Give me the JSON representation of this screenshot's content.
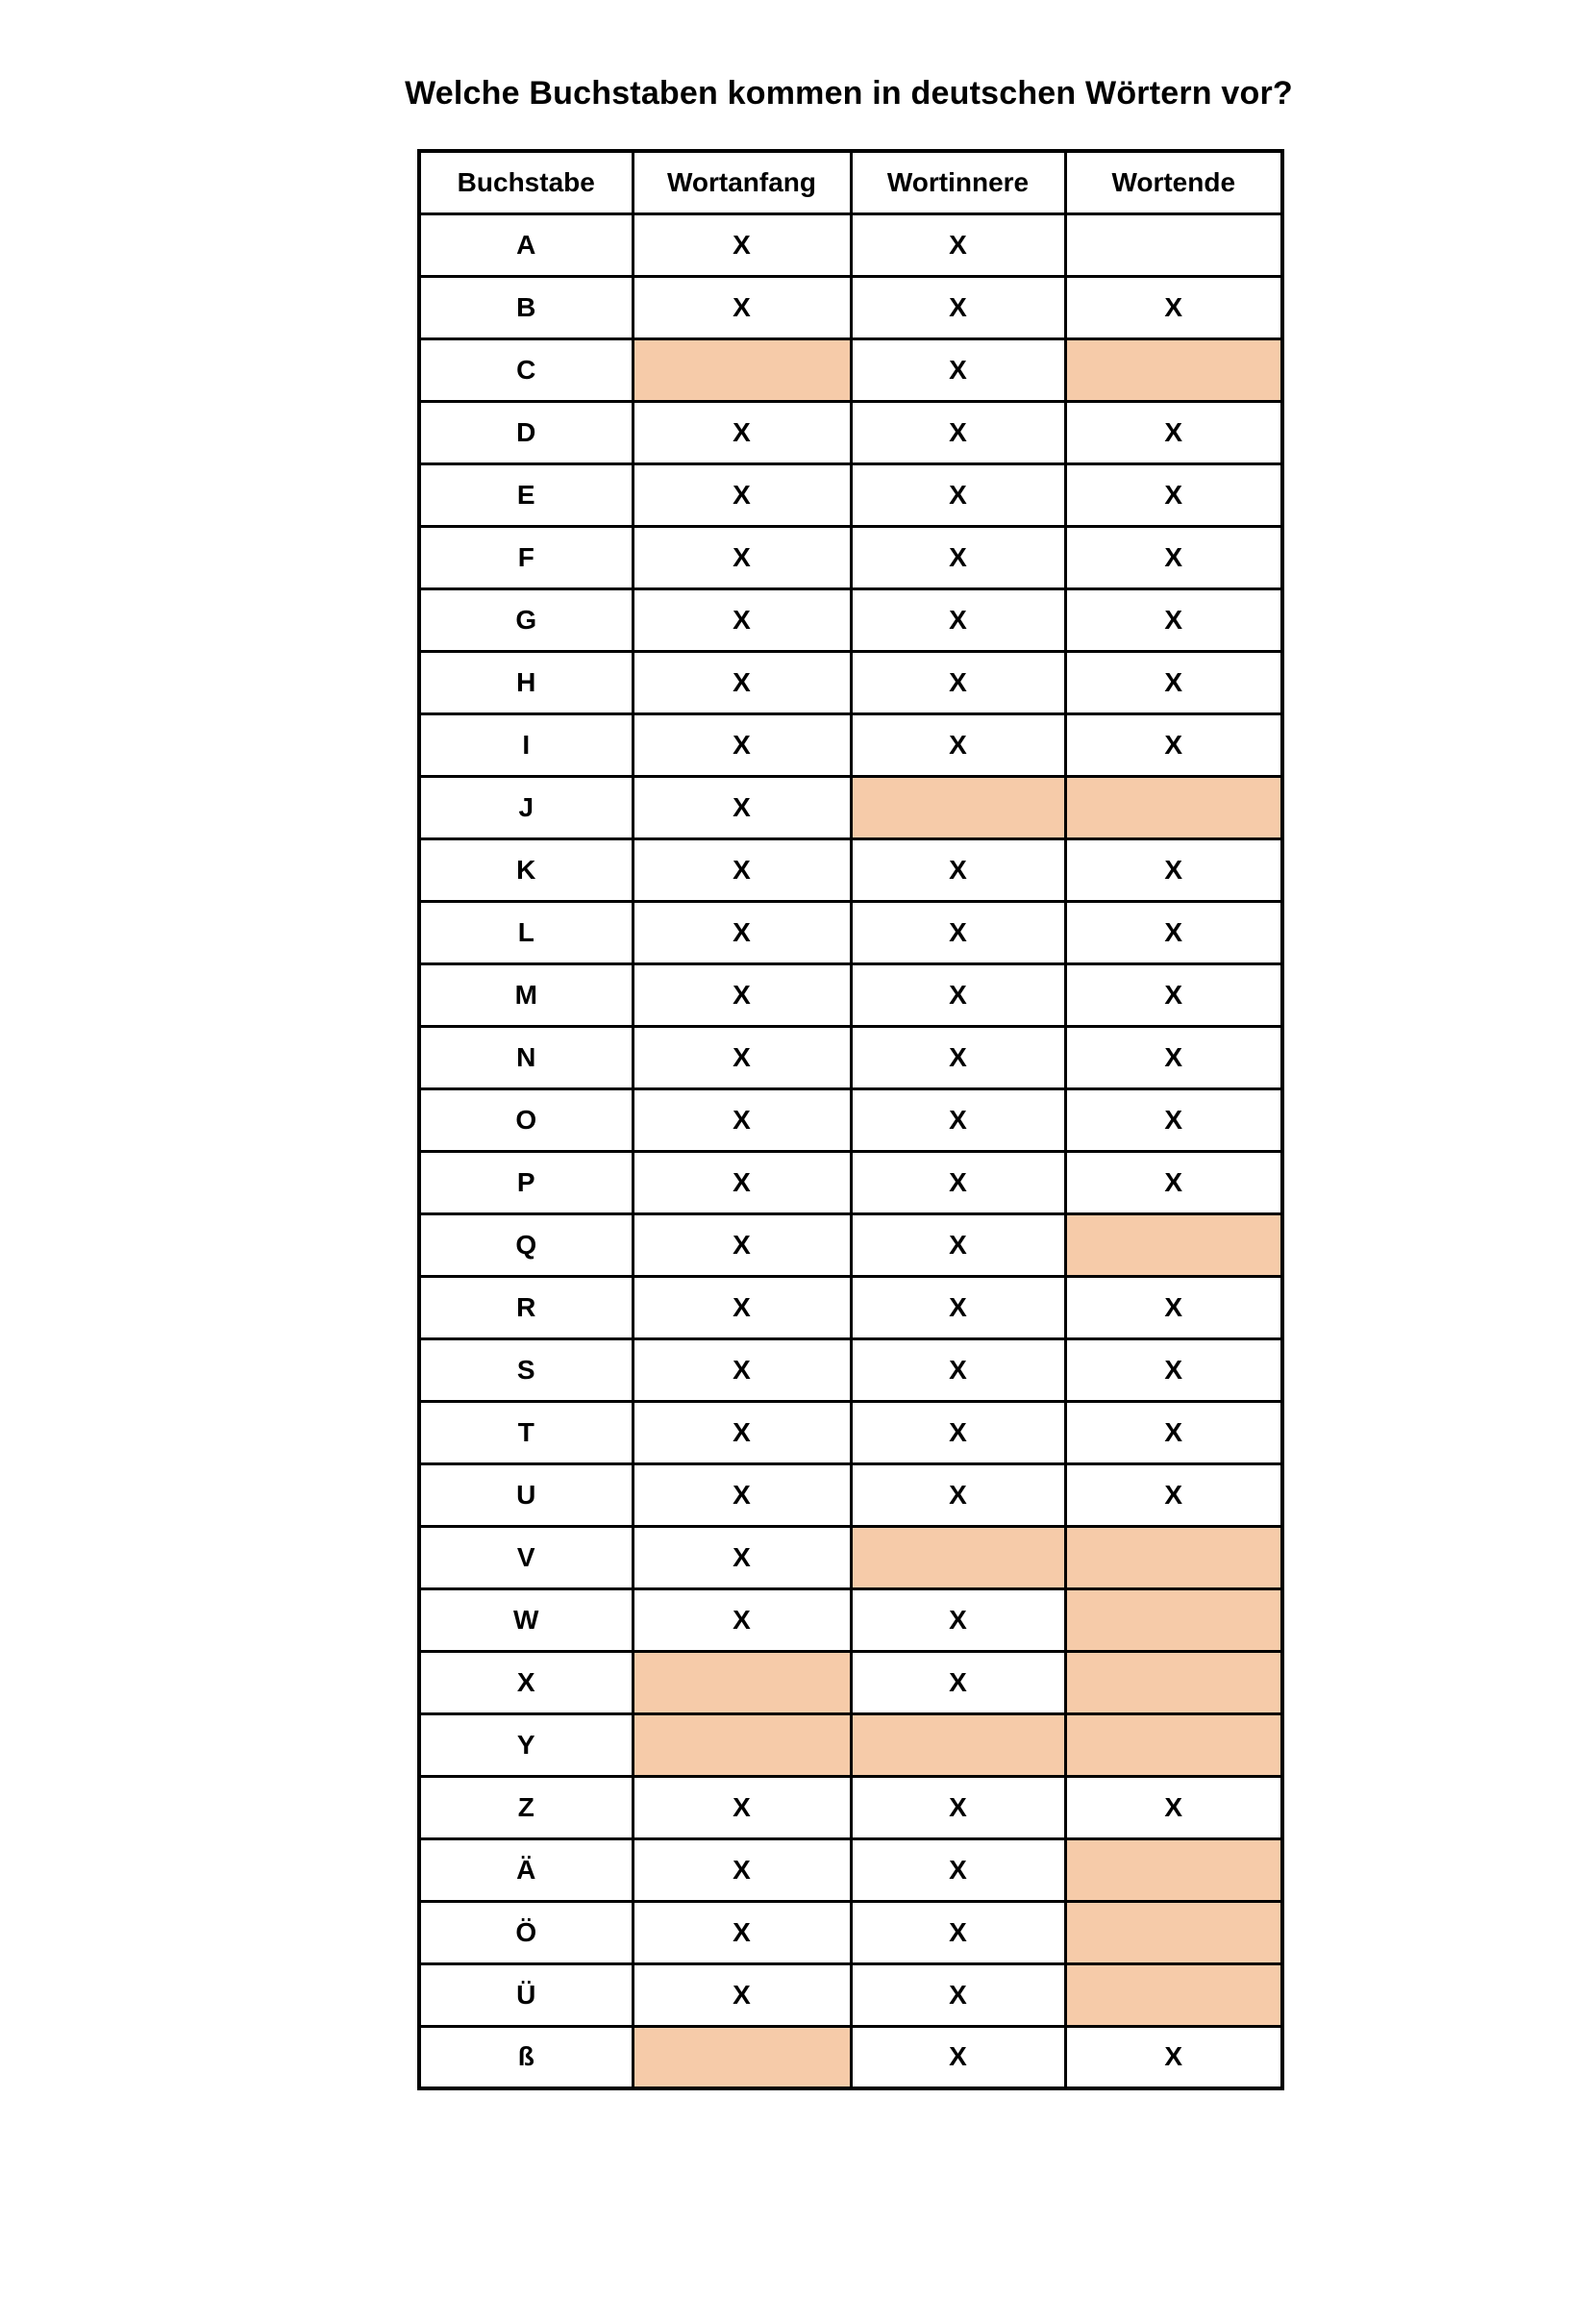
{
  "page": {
    "title": "Welche Buchstaben kommen in deutschen Wörtern vor?"
  },
  "table": {
    "headers": [
      "Buchstabe",
      "Wortanfang",
      "Wortinnere",
      "Wortende"
    ],
    "mark": "X",
    "shaded_cell_color": "#F6CBA9",
    "rows": [
      {
        "letter": "A",
        "cells": [
          "X",
          "X",
          ""
        ]
      },
      {
        "letter": "B",
        "cells": [
          "X",
          "X",
          "X"
        ]
      },
      {
        "letter": "C",
        "cells": [
          "shaded",
          "X",
          "shaded"
        ]
      },
      {
        "letter": "D",
        "cells": [
          "X",
          "X",
          "X"
        ]
      },
      {
        "letter": "E",
        "cells": [
          "X",
          "X",
          "X"
        ]
      },
      {
        "letter": "F",
        "cells": [
          "X",
          "X",
          "X"
        ]
      },
      {
        "letter": "G",
        "cells": [
          "X",
          "X",
          "X"
        ]
      },
      {
        "letter": "H",
        "cells": [
          "X",
          "X",
          "X"
        ]
      },
      {
        "letter": "I",
        "cells": [
          "X",
          "X",
          "X"
        ]
      },
      {
        "letter": "J",
        "cells": [
          "X",
          "shaded",
          "shaded"
        ]
      },
      {
        "letter": "K",
        "cells": [
          "X",
          "X",
          "X"
        ]
      },
      {
        "letter": "L",
        "cells": [
          "X",
          "X",
          "X"
        ]
      },
      {
        "letter": "M",
        "cells": [
          "X",
          "X",
          "X"
        ]
      },
      {
        "letter": "N",
        "cells": [
          "X",
          "X",
          "X"
        ]
      },
      {
        "letter": "O",
        "cells": [
          "X",
          "X",
          "X"
        ]
      },
      {
        "letter": "P",
        "cells": [
          "X",
          "X",
          "X"
        ]
      },
      {
        "letter": "Q",
        "cells": [
          "X",
          "X",
          "shaded"
        ]
      },
      {
        "letter": "R",
        "cells": [
          "X",
          "X",
          "X"
        ]
      },
      {
        "letter": "S",
        "cells": [
          "X",
          "X",
          "X"
        ]
      },
      {
        "letter": "T",
        "cells": [
          "X",
          "X",
          "X"
        ]
      },
      {
        "letter": "U",
        "cells": [
          "X",
          "X",
          "X"
        ]
      },
      {
        "letter": "V",
        "cells": [
          "X",
          "shaded",
          "shaded"
        ]
      },
      {
        "letter": "W",
        "cells": [
          "X",
          "X",
          "shaded"
        ]
      },
      {
        "letter": "X",
        "cells": [
          "shaded",
          "X",
          "shaded"
        ]
      },
      {
        "letter": "Y",
        "cells": [
          "shaded",
          "shaded",
          "shaded"
        ]
      },
      {
        "letter": "Z",
        "cells": [
          "X",
          "X",
          "X"
        ]
      },
      {
        "letter": "Ä",
        "cells": [
          "X",
          "X",
          "shaded"
        ]
      },
      {
        "letter": "Ö",
        "cells": [
          "X",
          "X",
          "shaded"
        ]
      },
      {
        "letter": "Ü",
        "cells": [
          "X",
          "X",
          "shaded"
        ]
      },
      {
        "letter": "ß",
        "cells": [
          "shaded",
          "X",
          "X"
        ]
      }
    ]
  }
}
